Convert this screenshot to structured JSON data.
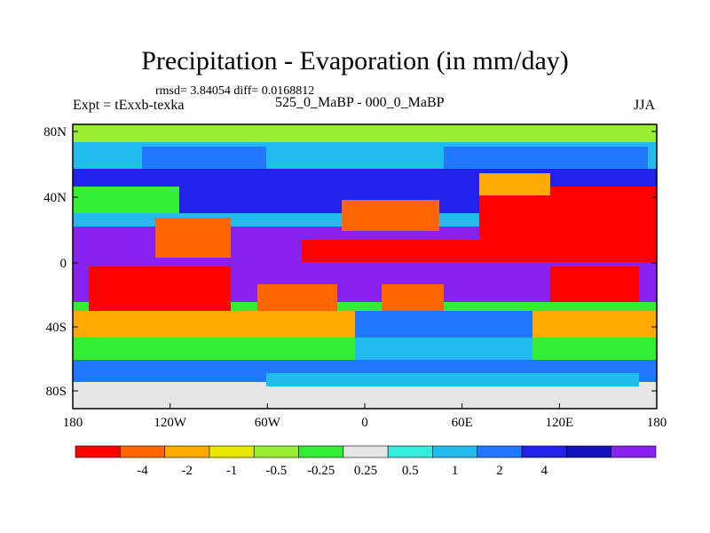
{
  "title": "Precipitation - Evaporation (in mm/day)",
  "stats": "rmsd= 3.84054 diff= 0.0168812",
  "left_label": "Expt = tExxb-texka",
  "center_label": "525_0_MaBP - 000_0_MaBP",
  "right_label": "JJA",
  "lat_ticks": [
    "80N",
    "40N",
    "0",
    "40S",
    "80S"
  ],
  "lon_ticks": [
    "180",
    "120W",
    "60W",
    "0",
    "60E",
    "120E",
    "180"
  ],
  "colorbar": {
    "colors": [
      "#ff0000",
      "#ff6600",
      "#ffaa00",
      "#e6e600",
      "#99ee33",
      "#33ee33",
      "#e6e6e6",
      "#33eedd",
      "#22bbee",
      "#2277ff",
      "#2222ee",
      "#1111bb",
      "#8822ee"
    ],
    "labels": [
      "-4",
      "-2",
      "-1",
      "-0.5",
      "-0.25",
      "0.25",
      "0.5",
      "1",
      "2",
      "4"
    ]
  }
}
